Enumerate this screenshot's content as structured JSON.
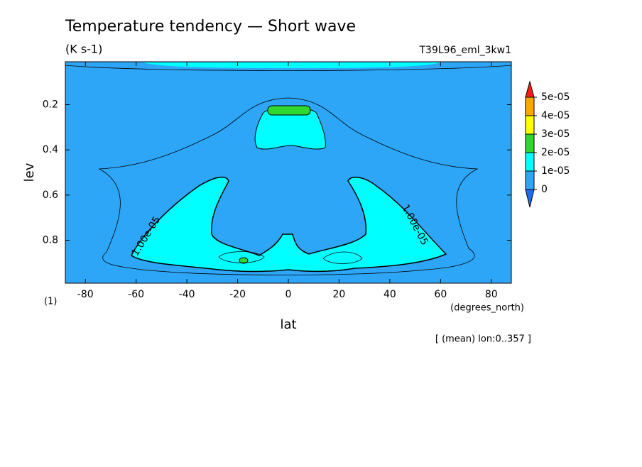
{
  "chart_data": {
    "type": "contour",
    "title": "Temperature tendency — Short wave",
    "units": "(K s-1)",
    "run": "T39L96_eml_3kw1",
    "xlabel": "lat",
    "ylabel": "lev",
    "xunits": "(degrees_north)",
    "yunits": "(1)",
    "footnote": "[ (mean) lon:0..357 ]",
    "xlim": [
      -87.9,
      87.9
    ],
    "xticks": [
      -80,
      -60,
      -40,
      -20,
      0,
      20,
      40,
      60,
      80
    ],
    "ylim": [
      0.99,
      0.01
    ],
    "yticks": [
      0.2,
      0.4,
      0.6,
      0.8
    ],
    "levels": [
      0,
      {
        "value": 1e-05,
        "label": "1e-05"
      },
      {
        "value": 2e-05,
        "label": "2e-05"
      },
      {
        "value": 3e-05,
        "label": "3e-05"
      },
      {
        "value": 4e-05,
        "label": "4e-05"
      },
      {
        "value": 5e-05,
        "label": "5e-05"
      }
    ],
    "colors": [
      "#1f6cf0",
      "#2ea6f7",
      "#00ffff",
      "#2ed82e",
      "#ffff00",
      "#ffa500",
      "#ff1a1a"
    ],
    "contour_labels": [
      "1.00e-05",
      "1.00e-05"
    ]
  }
}
